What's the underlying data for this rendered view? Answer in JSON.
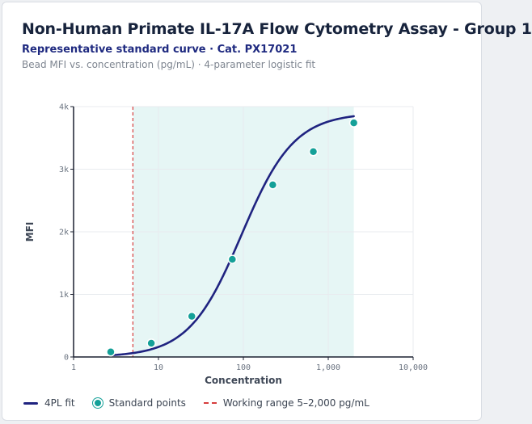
{
  "title": "Non-Human Primate IL-17A Flow Cytometry Assay - Group 1",
  "subtitle": "Representative standard curve · Cat. PX17021",
  "caption": "Bead MFI vs. concentration (pg/mL) · 4-parameter logistic fit",
  "chart_data": {
    "type": "scatter",
    "x_scale": "log",
    "xlim": [
      1,
      10000
    ],
    "ylim": [
      0,
      4000
    ],
    "xlabel": "Concentration",
    "ylabel": "MFI",
    "x_ticks": [
      1,
      10,
      100,
      1000,
      10000
    ],
    "x_tick_labels": [
      "1",
      "10",
      "100",
      "1,000",
      "10,000"
    ],
    "y_ticks": [
      0,
      1000,
      2000,
      3000,
      4000
    ],
    "y_tick_labels": [
      "0",
      "1k",
      "2k",
      "3k",
      "4k"
    ],
    "grid": true,
    "legend_position": "bottom",
    "series": [
      {
        "name": "Standard points",
        "type": "scatter",
        "x": [
          2.74,
          8.23,
          24.7,
          74.1,
          222,
          667,
          2000
        ],
        "y": [
          80,
          220,
          650,
          1560,
          2750,
          3280,
          3740
        ]
      },
      {
        "name": "4PL fit",
        "type": "line",
        "x_range": [
          2.74,
          2000
        ],
        "model": "4PL",
        "params": {
          "a": 0,
          "b": 1.4,
          "c": 95,
          "d": 3900
        }
      }
    ],
    "reference_lines": [
      {
        "axis": "x",
        "value": 5,
        "label": "Working range 5–2,000 pg/mL"
      }
    ],
    "shaded_range": {
      "axis": "x",
      "from": 5,
      "to": 2000
    },
    "colors": {
      "fit": "#1f2380",
      "points": "#14a098",
      "working_range_line": "#d63c3c",
      "working_range_fill": "#e6f6f5"
    }
  },
  "legend": {
    "fit_label": "4PL fit",
    "points_label": "Standard points",
    "range_label": "Working range 5–2,000 pg/mL"
  }
}
